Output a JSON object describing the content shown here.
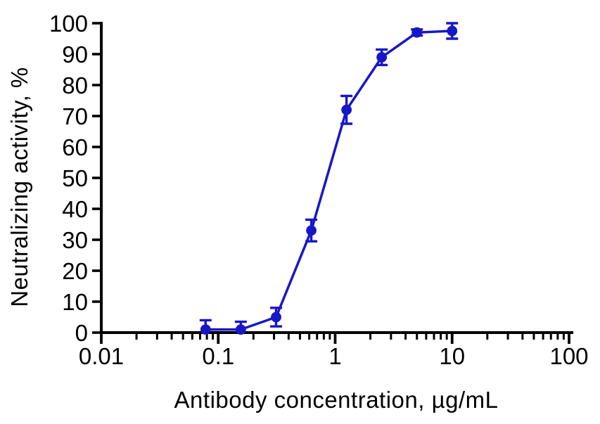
{
  "figure": {
    "background": "#ffffff",
    "axis_color": "#000000",
    "text_color": "#000000"
  },
  "chart_data": {
    "type": "line",
    "title": "",
    "xlabel": "Antibody concentration, µg/mL",
    "ylabel": "Neutralizing activity, %",
    "x_scale": "log",
    "xlim": [
      0.01,
      100
    ],
    "ylim": [
      0,
      100
    ],
    "x_ticks": [
      0.01,
      0.1,
      1,
      10,
      100
    ],
    "x_tick_labels": [
      "0.01",
      "0.1",
      "1",
      "10",
      "100"
    ],
    "y_ticks": [
      0,
      10,
      20,
      30,
      40,
      50,
      60,
      70,
      80,
      90,
      100
    ],
    "y_tick_labels": [
      "0",
      "10",
      "20",
      "30",
      "40",
      "50",
      "60",
      "70",
      "80",
      "90",
      "100"
    ],
    "grid": false,
    "legend": null,
    "series": [
      {
        "name": "neutralizing-activity",
        "color": "#1717c8",
        "marker": "circle",
        "x": [
          0.078,
          0.156,
          0.3125,
          0.625,
          1.25,
          2.5,
          5,
          10
        ],
        "y": [
          1,
          1,
          5,
          33,
          72,
          89,
          97,
          97.5
        ],
        "y_err": [
          3,
          2.5,
          3,
          3.5,
          4.5,
          2.5,
          1,
          2.5
        ]
      }
    ]
  }
}
